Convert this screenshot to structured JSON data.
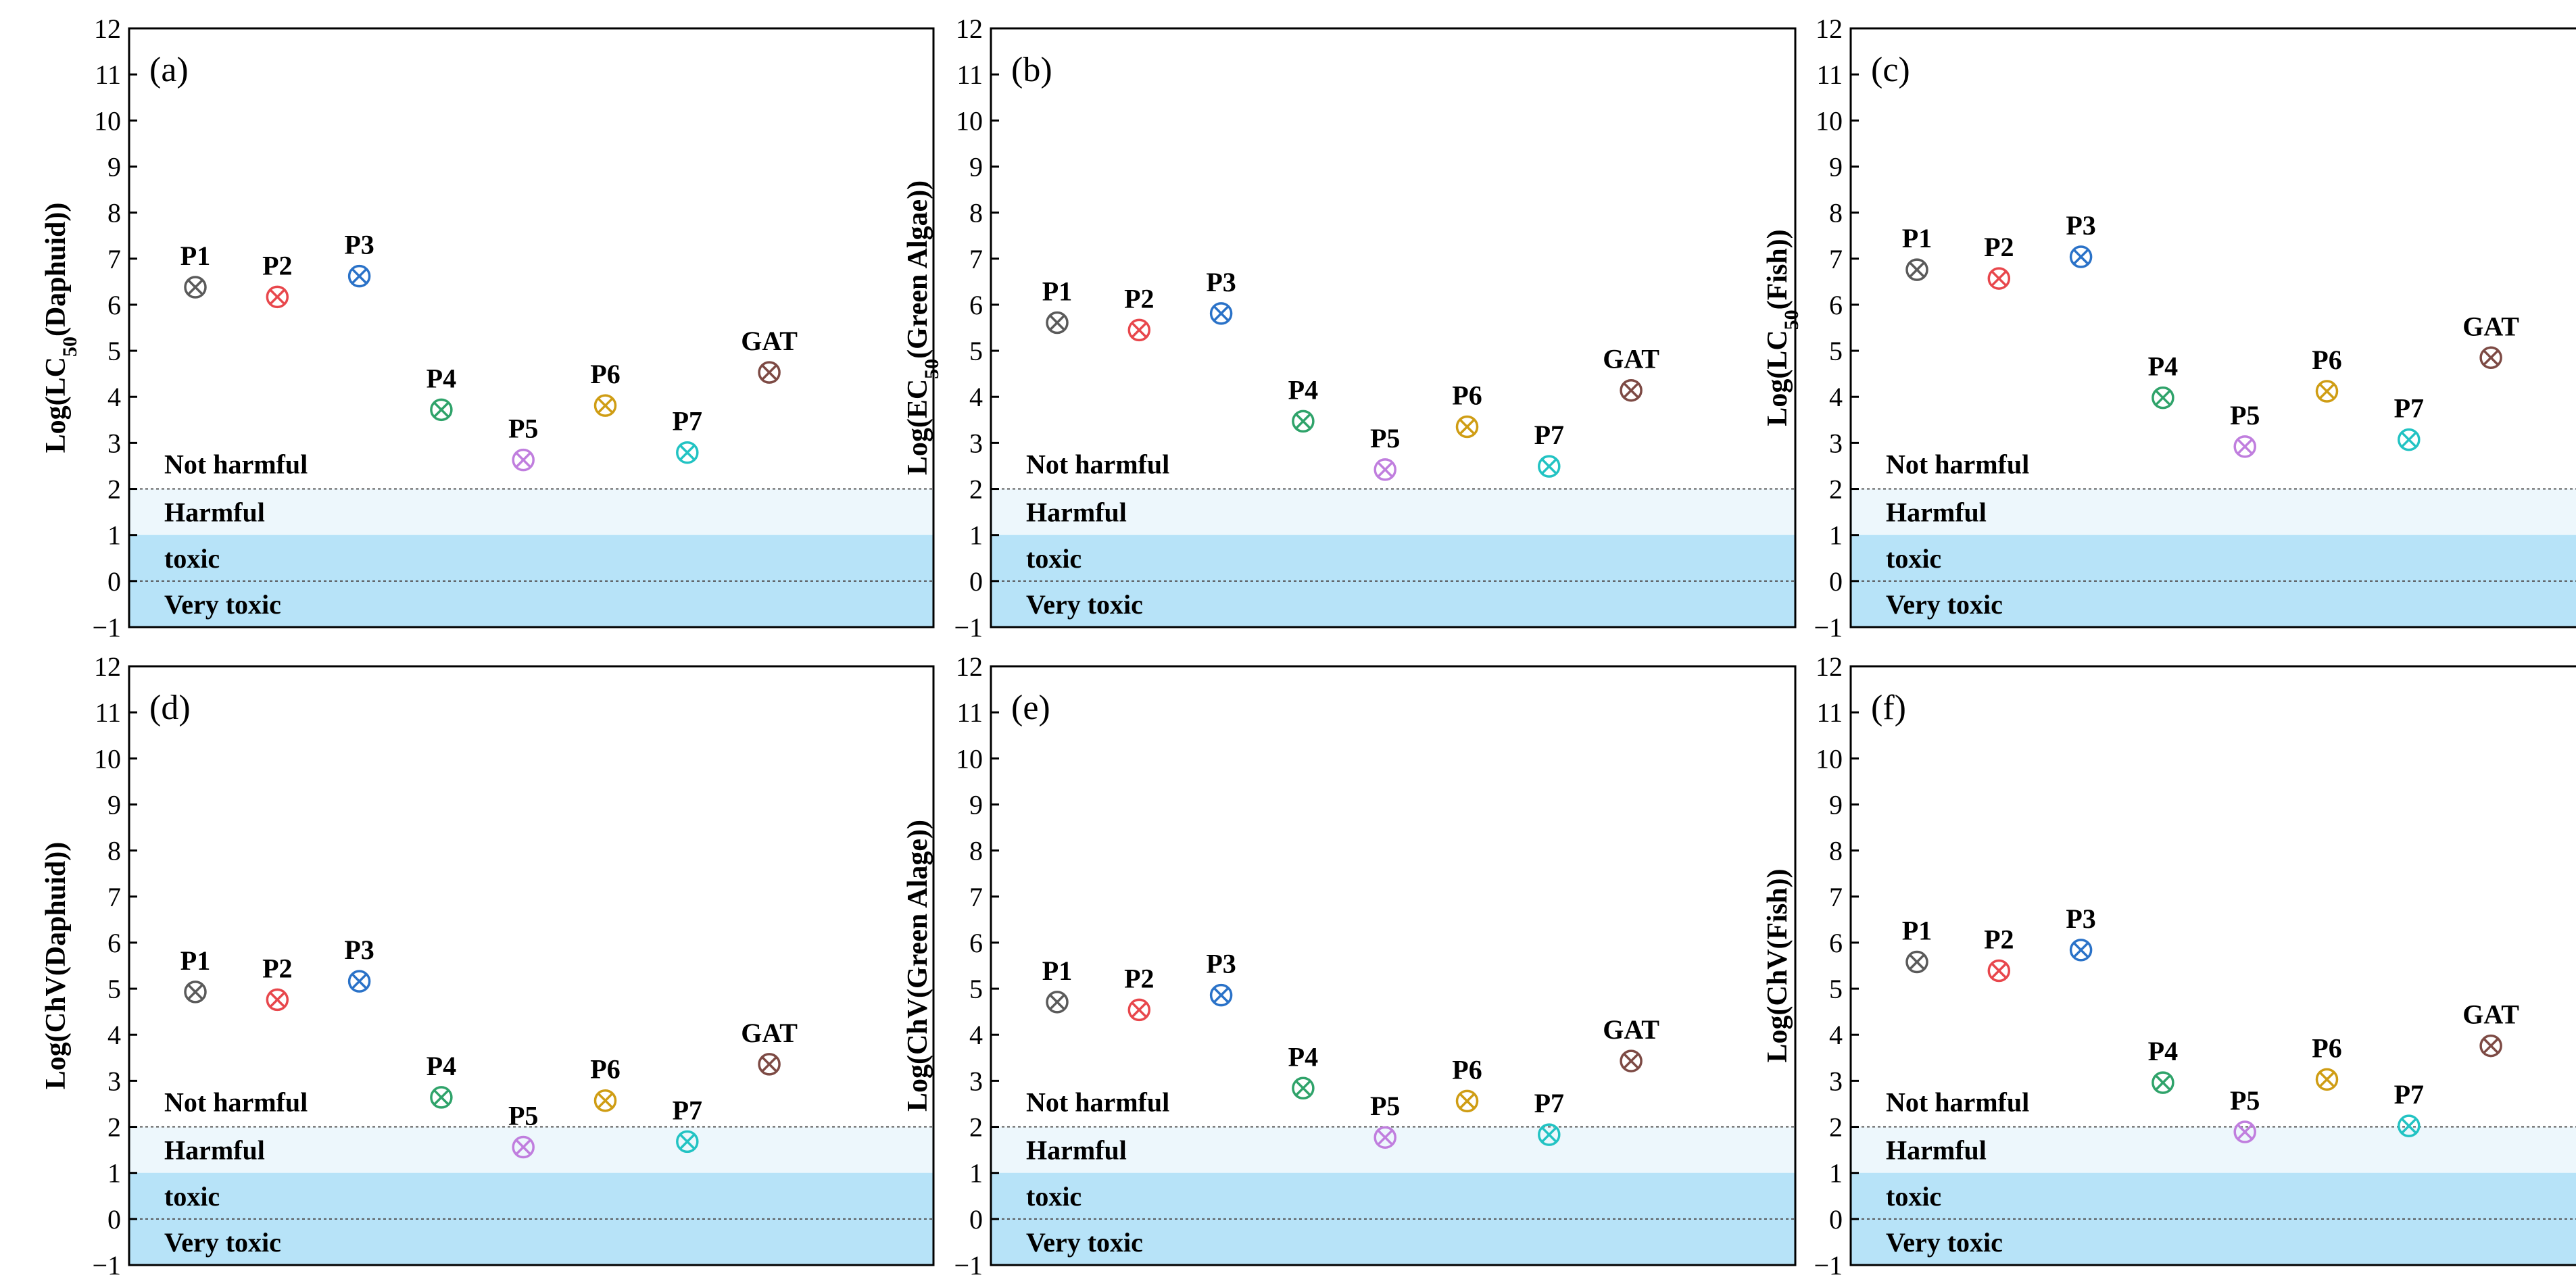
{
  "chart_data": [
    {
      "type": "scatter",
      "panel_label": "(a)",
      "ylabel_pre": "Log(LC",
      "ylabel_sub": "50",
      "ylabel_post": "(Daphuid))",
      "ylim": [
        -1,
        12
      ],
      "yticks": [
        "−1",
        "0",
        "1",
        "2",
        "3",
        "4",
        "5",
        "6",
        "7",
        "8",
        "9",
        "10",
        "11",
        "12"
      ],
      "zones": [
        "Not harmful",
        "Harmful",
        "toxic",
        "Very toxic"
      ],
      "categories": [
        "P1",
        "P2",
        "P3",
        "P4",
        "P5",
        "P6",
        "P7",
        "GAT"
      ],
      "values": [
        6.38,
        6.17,
        6.62,
        3.72,
        2.63,
        3.81,
        2.79,
        4.53
      ]
    },
    {
      "type": "scatter",
      "panel_label": "(b)",
      "ylabel_pre": "Log(EC",
      "ylabel_sub": "50",
      "ylabel_post": "(Green Algae))",
      "ylim": [
        -1,
        12
      ],
      "yticks": [
        "−1",
        "0",
        "1",
        "2",
        "3",
        "4",
        "5",
        "6",
        "7",
        "8",
        "9",
        "10",
        "11",
        "12"
      ],
      "zones": [
        "Not harmful",
        "Harmful",
        "toxic",
        "Very toxic"
      ],
      "categories": [
        "P1",
        "P2",
        "P3",
        "P4",
        "P5",
        "P6",
        "P7",
        "GAT"
      ],
      "values": [
        5.61,
        5.45,
        5.81,
        3.47,
        2.42,
        3.35,
        2.49,
        4.14
      ]
    },
    {
      "type": "scatter",
      "panel_label": "(c)",
      "ylabel_pre": "Log(LC",
      "ylabel_sub": "50",
      "ylabel_post": "(Fish))",
      "ylim": [
        -1,
        12
      ],
      "yticks": [
        "−1",
        "0",
        "1",
        "2",
        "3",
        "4",
        "5",
        "6",
        "7",
        "8",
        "9",
        "10",
        "11",
        "12"
      ],
      "zones": [
        "Not harmful",
        "Harmful",
        "toxic",
        "Very toxic"
      ],
      "categories": [
        "P1",
        "P2",
        "P3",
        "P4",
        "P5",
        "P6",
        "P7",
        "GAT"
      ],
      "values": [
        6.76,
        6.57,
        7.04,
        3.98,
        2.92,
        4.12,
        3.07,
        4.85
      ]
    },
    {
      "type": "scatter",
      "panel_label": "(d)",
      "ylabel_pre": "Log(ChV(Daphuid))",
      "ylabel_sub": "",
      "ylabel_post": "",
      "ylim": [
        -1,
        12
      ],
      "yticks": [
        "−1",
        "0",
        "1",
        "2",
        "3",
        "4",
        "5",
        "6",
        "7",
        "8",
        "9",
        "10",
        "11",
        "12"
      ],
      "zones": [
        "Not harmful",
        "Harmful",
        "toxic",
        "Very toxic"
      ],
      "categories": [
        "P1",
        "P2",
        "P3",
        "P4",
        "P5",
        "P6",
        "P7",
        "GAT"
      ],
      "values": [
        4.93,
        4.76,
        5.16,
        2.64,
        1.56,
        2.57,
        1.68,
        3.36
      ]
    },
    {
      "type": "scatter",
      "panel_label": "(e)",
      "ylabel_pre": "Log(ChV(Green Alage))",
      "ylabel_sub": "",
      "ylabel_post": "",
      "ylim": [
        -1,
        12
      ],
      "yticks": [
        "−1",
        "0",
        "1",
        "2",
        "3",
        "4",
        "5",
        "6",
        "7",
        "8",
        "9",
        "10",
        "11",
        "12"
      ],
      "zones": [
        "Not harmful",
        "Harmful",
        "toxic",
        "Very toxic"
      ],
      "categories": [
        "P1",
        "P2",
        "P3",
        "P4",
        "P5",
        "P6",
        "P7",
        "GAT"
      ],
      "values": [
        4.71,
        4.54,
        4.86,
        2.84,
        1.77,
        2.56,
        1.83,
        3.43
      ]
    },
    {
      "type": "scatter",
      "panel_label": "(f)",
      "ylabel_pre": "Log(ChV(Fish))",
      "ylabel_sub": "",
      "ylabel_post": "",
      "ylim": [
        -1,
        12
      ],
      "yticks": [
        "−1",
        "0",
        "1",
        "2",
        "3",
        "4",
        "5",
        "6",
        "7",
        "8",
        "9",
        "10",
        "11",
        "12"
      ],
      "zones": [
        "Not harmful",
        "Harmful",
        "toxic",
        "Very toxic"
      ],
      "categories": [
        "P1",
        "P2",
        "P3",
        "P4",
        "P5",
        "P6",
        "P7",
        "GAT"
      ],
      "values": [
        5.58,
        5.39,
        5.84,
        2.96,
        1.89,
        3.03,
        2.02,
        3.76
      ]
    }
  ],
  "style": {
    "marker_colors": [
      "#5a5a5a",
      "#e8474c",
      "#2a72c8",
      "#2fa36a",
      "#c07ede",
      "#cf9d14",
      "#22c3c3",
      "#7d4a44"
    ],
    "harmful_band_color": "#edf7fc",
    "toxic_band_color": "#b7e3f8",
    "threshold_line_color": "#555555"
  }
}
